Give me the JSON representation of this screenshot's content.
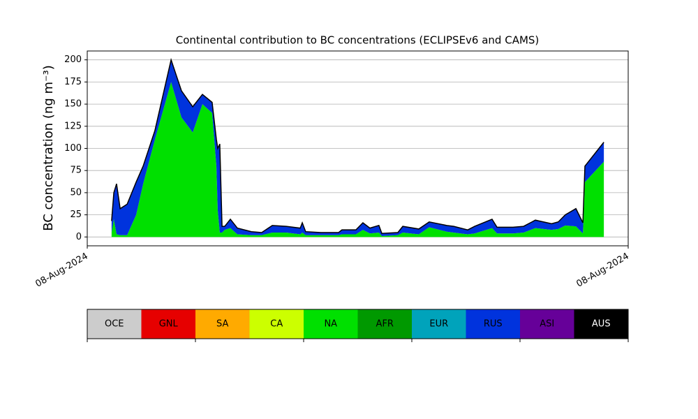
{
  "chart_data": {
    "type": "stacked_area",
    "title": "Continental contribution to BC concentrations (ECLIPSEv6 and CAMS)",
    "ylabel": "BC concentration (ng m⁻³)",
    "x": [
      1.08,
      1.18,
      1.3,
      1.46,
      1.77,
      2.17,
      2.48,
      3.0,
      3.72,
      4.18,
      4.68,
      5.11,
      5.54,
      5.73,
      5.79,
      5.88,
      5.98,
      6.1,
      6.35,
      6.66,
      7.28,
      7.74,
      8.21,
      8.83,
      9.45,
      9.54,
      9.69,
      10.37,
      11.15,
      11.3,
      11.92,
      12.23,
      12.54,
      12.94,
      13.07,
      13.78,
      14.0,
      14.71,
      15.17,
      15.95,
      16.26,
      16.88,
      17.19,
      17.96,
      18.18,
      18.89,
      19.36,
      19.88,
      20.6,
      20.9,
      21.21,
      21.68,
      21.99,
      22.08,
      22.92
    ],
    "series": [
      {
        "name": "NA",
        "color": "#00e000",
        "values": [
          5,
          20,
          3,
          2,
          2,
          25,
          60,
          110,
          175,
          135,
          118,
          150,
          140,
          80,
          30,
          5,
          5,
          8,
          10,
          3,
          2,
          2,
          5,
          5,
          3,
          5,
          2,
          2,
          2,
          3,
          3,
          8,
          4,
          5,
          1,
          2,
          5,
          3,
          11,
          6,
          5,
          3,
          4,
          10,
          4,
          4,
          5,
          10,
          8,
          9,
          13,
          12,
          4,
          62,
          85
        ]
      },
      {
        "name": "RUS",
        "color": "#0033dd",
        "values": [
          13,
          30,
          57,
          30,
          35,
          37,
          20,
          10,
          25,
          30,
          29,
          11,
          12,
          30,
          70,
          100,
          7,
          4,
          10,
          7,
          4,
          3,
          8,
          7,
          7,
          11,
          4,
          3,
          3,
          5,
          5,
          8,
          6,
          8,
          3,
          3,
          7,
          6,
          6,
          7,
          7,
          5,
          8,
          10,
          7,
          7,
          7,
          9,
          7,
          8,
          12,
          20,
          12,
          18,
          22
        ]
      }
    ],
    "xlim": [
      0,
      24
    ],
    "xticks": [
      {
        "value": 0,
        "label": "08-Aug-2024"
      },
      {
        "value": 24,
        "label": "08-Aug-2024"
      }
    ],
    "ylim": [
      -10,
      210
    ],
    "yticks": [
      0,
      25,
      50,
      75,
      100,
      125,
      150,
      175,
      200
    ],
    "grid": true,
    "outline_color": "#000000",
    "colorbar": [
      {
        "name": "OCE",
        "color": "#cccccc"
      },
      {
        "name": "GNL",
        "color": "#e60000"
      },
      {
        "name": "SA",
        "color": "#ffaa00"
      },
      {
        "name": "CA",
        "color": "#ccff00"
      },
      {
        "name": "NA",
        "color": "#00e000"
      },
      {
        "name": "AFR",
        "color": "#009900"
      },
      {
        "name": "EUR",
        "color": "#00a3bb"
      },
      {
        "name": "RUS",
        "color": "#0033dd"
      },
      {
        "name": "ASI",
        "color": "#660099"
      },
      {
        "name": "AUS",
        "color": "#000000"
      }
    ]
  }
}
